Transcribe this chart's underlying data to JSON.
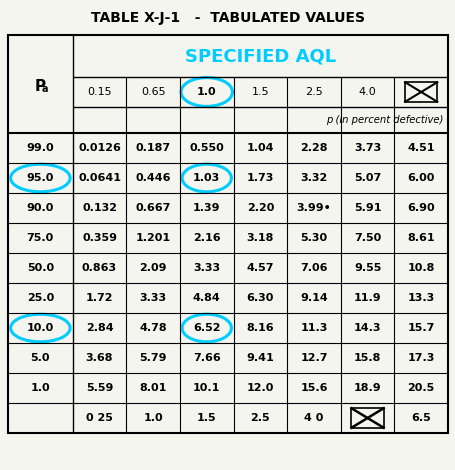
{
  "title": "TABLE X-J-1   -  TABULATED VALUES",
  "header_aql": "SPECIFIED AQL",
  "col_label": "P",
  "col_label_sub": "a",
  "aql_cols": [
    "0.15",
    "0.65",
    "1.0",
    "1.5",
    "2.5",
    "4.0",
    "X"
  ],
  "sub_label": "p (in percent defective)",
  "rows": [
    {
      "pa": "99.0",
      "vals": [
        "0.0126",
        "0.187",
        "0.550",
        "1.04",
        "2.28",
        "3.73",
        "4.51"
      ]
    },
    {
      "pa": "95.0",
      "vals": [
        "0.0641",
        "0.446",
        "1.03",
        "1.73",
        "3.32",
        "5.07",
        "6.00"
      ]
    },
    {
      "pa": "90.0",
      "vals": [
        "0.132",
        "0.667",
        "1.39",
        "2.20",
        "3.99•",
        "5.91",
        "6.90"
      ]
    },
    {
      "pa": "75.0",
      "vals": [
        "0.359",
        "1.201",
        "2.16",
        "3.18",
        "5.30",
        "7.50",
        "8.61"
      ]
    },
    {
      "pa": "50.0",
      "vals": [
        "0.863",
        "2.09",
        "3.33",
        "4.57",
        "7.06",
        "9.55",
        "10.8"
      ]
    },
    {
      "pa": "25.0",
      "vals": [
        "1.72",
        "3.33",
        "4.84",
        "6.30",
        "9.14",
        "11.9",
        "13.3"
      ]
    },
    {
      "pa": "10.0",
      "vals": [
        "2.84",
        "4.78",
        "6.52",
        "8.16",
        "11.3",
        "14.3",
        "15.7"
      ]
    },
    {
      "pa": "5.0",
      "vals": [
        "3.68",
        "5.79",
        "7.66",
        "9.41",
        "12.7",
        "15.8",
        "17.3"
      ]
    },
    {
      "pa": "1.0",
      "vals": [
        "5.59",
        "8.01",
        "10.1",
        "12.0",
        "15.6",
        "18.9",
        "20.5"
      ]
    }
  ],
  "bottom_row": [
    "",
    "0 25",
    "1.0",
    "1.5",
    "2.5",
    "4 0",
    "X",
    "6.5"
  ],
  "aql_header_color": "#00CCFF",
  "circle_color": "#00CCFF",
  "title_color": "#000000",
  "bg_color": "#f5f5f0",
  "font_size_title": 10,
  "font_size_aql_header": 13,
  "font_size_body": 8.0,
  "font_size_sub": 7.2
}
